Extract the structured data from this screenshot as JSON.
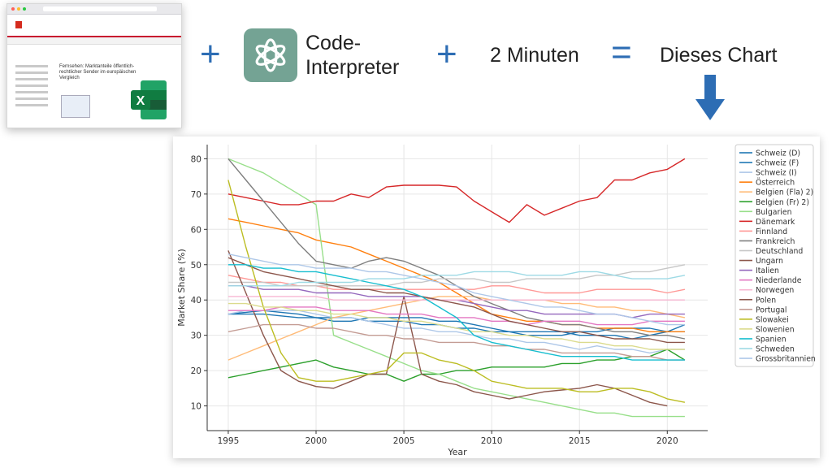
{
  "banner": {
    "plus_1": "+",
    "code_interpreter": "Code-\nInterpreter",
    "plus_2": "+",
    "minutes": "2 Minuten",
    "equals": "=",
    "result": "Dieses Chart"
  },
  "screenshot": {
    "heading": "Fernsehen: Marktanteile öffentlich-rechtlicher Sender im europäischen Vergleich",
    "excel_letter": "X"
  },
  "colors": {
    "accent_blue": "#2d6db4",
    "gpt_green": "#74a394",
    "excel_green": "#1d6f42"
  },
  "chart_data": {
    "type": "line",
    "xlabel": "Year",
    "ylabel": "Market Share (%)",
    "xlim": [
      1993.8,
      2022.3
    ],
    "ylim": [
      3,
      84
    ],
    "xticks": [
      1995,
      2000,
      2005,
      2010,
      2015,
      2020
    ],
    "yticks": [
      10,
      20,
      30,
      40,
      50,
      60,
      70,
      80
    ],
    "grid": true,
    "legend_position": "top-right",
    "x": [
      1995,
      1996,
      1997,
      1998,
      1999,
      2000,
      2001,
      2002,
      2003,
      2004,
      2005,
      2006,
      2007,
      2008,
      2009,
      2010,
      2011,
      2012,
      2013,
      2014,
      2015,
      2016,
      2017,
      2018,
      2019,
      2020,
      2021
    ],
    "series": [
      {
        "name": "Schweiz (D)",
        "color": "#1f77b4",
        "values": [
          36,
          36,
          36,
          35.5,
          35,
          35,
          35,
          35,
          34,
          34,
          34,
          33,
          33,
          32,
          32,
          31,
          31,
          30,
          30,
          30,
          31,
          31,
          32,
          32,
          32,
          31,
          31
        ]
      },
      {
        "name": "Schweiz (F)",
        "color": "#1f77b4",
        "values": [
          36,
          36.5,
          37,
          36.5,
          36,
          35,
          34,
          34,
          35,
          35,
          35,
          35,
          34,
          34,
          33,
          32,
          31,
          31,
          31,
          31,
          30,
          30,
          30,
          29,
          30,
          31,
          33
        ]
      },
      {
        "name": "Schweiz (I)",
        "color": "#aec7e8",
        "values": [
          36,
          37,
          37,
          37,
          37,
          36,
          35,
          35,
          34,
          33,
          32,
          32,
          31,
          31,
          30,
          29,
          29,
          28,
          28,
          27,
          26,
          27,
          26,
          26,
          25,
          26,
          26
        ]
      },
      {
        "name": "Österreich",
        "color": "#ff7f0e",
        "values": [
          63,
          62,
          61,
          60,
          59,
          57,
          56,
          55,
          53,
          51,
          49,
          47,
          45,
          42,
          39,
          36,
          35,
          34,
          34,
          33,
          33,
          32,
          32,
          32,
          31,
          31,
          31
        ]
      },
      {
        "name": "Belgien (Fla) 2)",
        "color": "#ffbb78",
        "values": [
          23,
          25,
          27,
          29,
          31,
          33,
          35,
          36,
          37,
          38,
          39,
          40,
          41,
          41,
          41,
          40,
          40,
          40,
          40,
          39,
          39,
          38,
          38,
          37,
          37,
          36,
          35
        ]
      },
      {
        "name": "Belgien (Fr) 2)",
        "color": "#2ca02c",
        "values": [
          18,
          19,
          20,
          21,
          22,
          23,
          21,
          20,
          19,
          19,
          17,
          19,
          19,
          20,
          20,
          21,
          21,
          21,
          21,
          22,
          22,
          23,
          23,
          24,
          24,
          26,
          23
        ]
      },
      {
        "name": "Bulgarien",
        "color": "#98df8a",
        "values": [
          80,
          78,
          76,
          73,
          70,
          67,
          30,
          28,
          26,
          24,
          22,
          20,
          19,
          17,
          15,
          14,
          13,
          12,
          11,
          10,
          9,
          8,
          8,
          7,
          7,
          7,
          7
        ]
      },
      {
        "name": "Dänemark",
        "color": "#d62728",
        "values": [
          70,
          69,
          68,
          67,
          67,
          68,
          68,
          70,
          69,
          72,
          72.5,
          72.5,
          72.5,
          72,
          68,
          65,
          62,
          67,
          64,
          66,
          68,
          69,
          74,
          74,
          76,
          77,
          80
        ]
      },
      {
        "name": "Finnland",
        "color": "#ff9896",
        "values": [
          47,
          46,
          45,
          45,
          44,
          44,
          43,
          43,
          43,
          43,
          43,
          43,
          43,
          43,
          43,
          44,
          44,
          43,
          42,
          42,
          42,
          43,
          43,
          43,
          43,
          42,
          43
        ]
      },
      {
        "name": "Frankreich",
        "color": "#7f7f7f",
        "values": [
          80,
          74,
          68,
          62,
          56,
          51,
          50,
          49,
          51,
          52,
          51,
          49,
          47,
          44,
          41,
          39,
          37,
          35,
          34,
          33,
          33,
          32,
          31,
          31,
          30,
          30,
          29
        ]
      },
      {
        "name": "Deutschland",
        "color": "#c7c7c7",
        "values": [
          45,
          45,
          45,
          44,
          44,
          44,
          44,
          44,
          44,
          44,
          45,
          45,
          46,
          46,
          46,
          45,
          45,
          46,
          46,
          46,
          46,
          47,
          47,
          48,
          48,
          49,
          50
        ]
      },
      {
        "name": "Ungarn",
        "color": "#8c564b",
        "values": [
          54,
          42,
          30,
          20,
          17,
          15.5,
          15,
          17,
          19,
          19,
          41,
          19,
          17,
          16,
          14,
          13,
          12,
          13,
          14,
          14.5,
          15,
          16,
          15,
          13,
          11,
          10,
          null
        ]
      },
      {
        "name": "Italien",
        "color": "#9467bd",
        "values": [
          44,
          44,
          43,
          43,
          43,
          42,
          42,
          42,
          41,
          41,
          41,
          41,
          40,
          40,
          39,
          38,
          37,
          37,
          36,
          36,
          36,
          36,
          36,
          35,
          36,
          36,
          36
        ]
      },
      {
        "name": "Niederlande",
        "color": "#e377c2",
        "values": [
          37,
          37,
          37,
          38,
          38,
          38,
          37,
          37,
          37,
          36,
          36,
          36,
          35,
          35,
          35,
          34,
          34,
          33,
          34,
          34,
          34,
          33,
          33,
          33,
          34,
          34,
          34
        ]
      },
      {
        "name": "Norwegen",
        "color": "#f7b6d2",
        "values": [
          41,
          41,
          41,
          41,
          41,
          41,
          40,
          40,
          40,
          40,
          40,
          40,
          40,
          40,
          40,
          40,
          40,
          40,
          40,
          40,
          40,
          40,
          40,
          40,
          40,
          40,
          40
        ]
      },
      {
        "name": "Polen",
        "color": "#8c564b",
        "values": [
          52,
          50,
          48,
          47,
          46,
          45,
          44,
          43,
          43,
          42,
          42,
          41,
          40,
          39,
          38,
          36,
          34,
          33,
          32,
          31,
          31,
          30,
          29,
          29,
          29,
          28,
          28
        ]
      },
      {
        "name": "Portugal",
        "color": "#c49c94",
        "values": [
          31,
          32,
          33,
          33,
          33,
          32,
          32,
          31,
          30,
          30,
          29,
          29,
          28,
          28,
          28,
          27,
          27,
          26,
          26,
          25,
          25,
          25,
          25,
          24,
          24,
          23,
          23
        ]
      },
      {
        "name": "Slowakei",
        "color": "#bcbd22",
        "values": [
          74,
          55,
          38,
          25,
          18,
          17,
          17,
          18,
          19,
          20,
          25,
          25,
          23,
          22,
          20,
          17,
          16,
          15,
          15,
          15,
          14,
          14,
          15,
          15,
          14,
          12,
          11
        ]
      },
      {
        "name": "Slowenien",
        "color": "#dbdb8d",
        "values": [
          39,
          39,
          38,
          38,
          37,
          37,
          36,
          36,
          35,
          35,
          34,
          34,
          33,
          32,
          31,
          31,
          30,
          30,
          29,
          29,
          28,
          28,
          27,
          27,
          26,
          26,
          26
        ]
      },
      {
        "name": "Spanien",
        "color": "#17becf",
        "values": [
          50,
          50,
          49,
          49,
          48,
          48,
          47,
          46,
          45,
          44,
          43,
          41,
          38,
          35,
          30,
          28,
          27,
          26,
          25,
          24,
          24,
          24,
          24,
          23,
          23,
          23,
          23
        ]
      },
      {
        "name": "Schweden",
        "color": "#9edae5",
        "values": [
          44,
          44,
          44,
          44,
          45,
          45,
          45,
          45,
          46,
          46,
          46,
          47,
          47,
          47,
          48,
          48,
          48,
          47,
          47,
          47,
          48,
          48,
          47,
          46,
          46,
          46,
          47
        ]
      },
      {
        "name": "Grossbritannien",
        "color": "#aec7e8",
        "values": [
          53,
          52,
          51,
          50,
          50,
          49,
          49,
          49,
          48,
          48,
          47,
          46,
          45,
          44,
          42,
          41,
          40,
          39,
          38,
          38,
          37,
          36,
          36,
          35,
          34,
          33,
          33
        ]
      }
    ]
  }
}
